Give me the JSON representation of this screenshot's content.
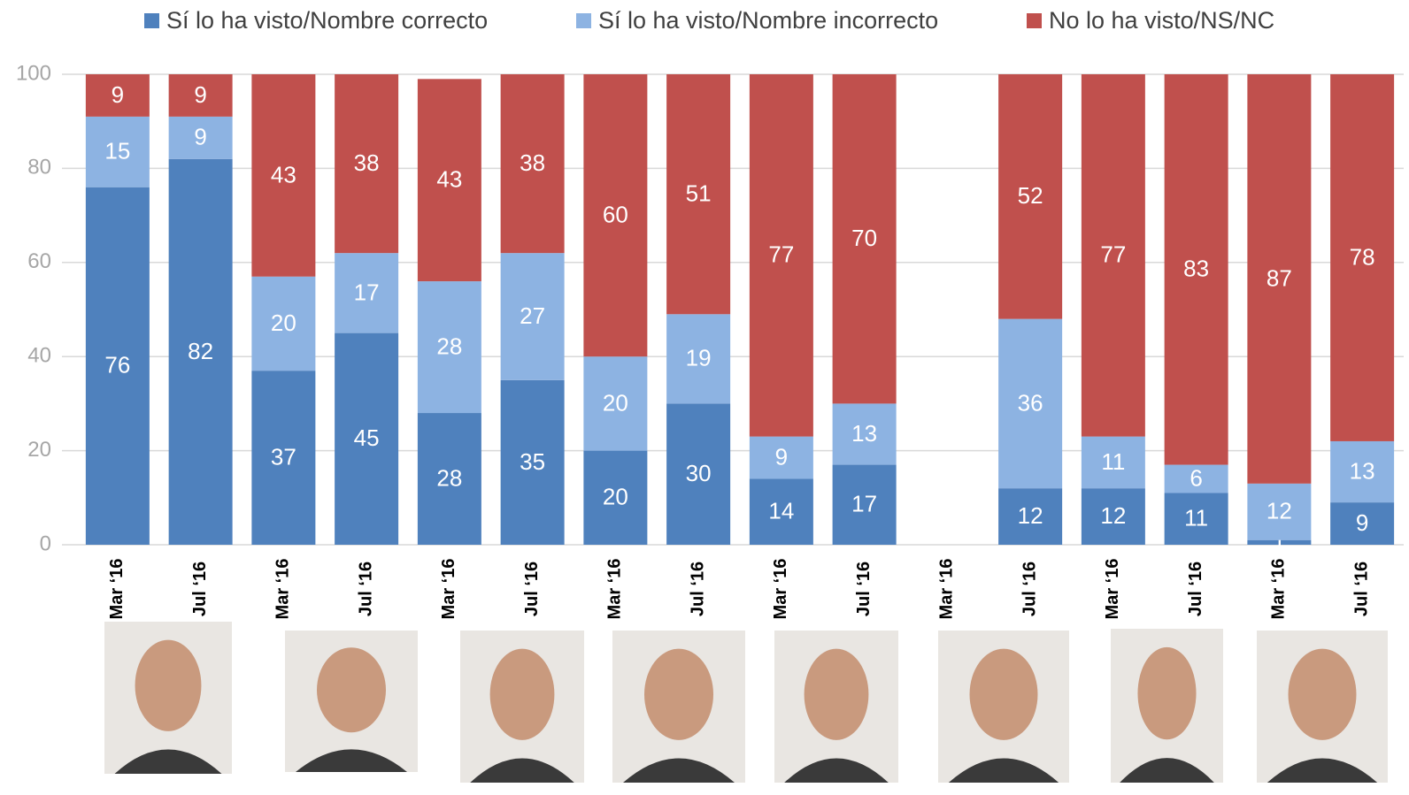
{
  "chart_data": {
    "type": "stacked-bar",
    "categories": [
      "Mar ‘16",
      "Jul ‘16",
      "Mar ‘16",
      "Jul ‘16",
      "Mar ‘16",
      "Jul ‘16",
      "Mar ‘16",
      "Jul ‘16",
      "Mar ‘16",
      "Jul ‘16",
      "Mar ‘16",
      "Jul ‘16",
      "Mar ‘16",
      "Jul ‘16",
      "Mar ‘16",
      "Jul ‘16"
    ],
    "series": [
      {
        "name": "Sí lo ha visto/Nombre correcto",
        "color": "#4f81bd",
        "values": [
          76,
          82,
          37,
          45,
          28,
          35,
          20,
          30,
          14,
          17,
          null,
          12,
          12,
          11,
          1,
          9
        ]
      },
      {
        "name": "Sí lo ha visto/Nombre incorrecto",
        "color": "#8db3e2",
        "values": [
          15,
          9,
          20,
          17,
          28,
          27,
          20,
          19,
          9,
          13,
          null,
          36,
          11,
          6,
          12,
          13
        ]
      },
      {
        "name": "No lo ha visto/NS/NC",
        "color": "#c0504d",
        "values": [
          9,
          9,
          43,
          38,
          43,
          38,
          60,
          51,
          77,
          70,
          null,
          52,
          77,
          83,
          87,
          78
        ]
      }
    ],
    "ylim": [
      0,
      100
    ],
    "yticks": [
      0,
      20,
      40,
      60,
      80,
      100
    ],
    "grid": true
  }
}
